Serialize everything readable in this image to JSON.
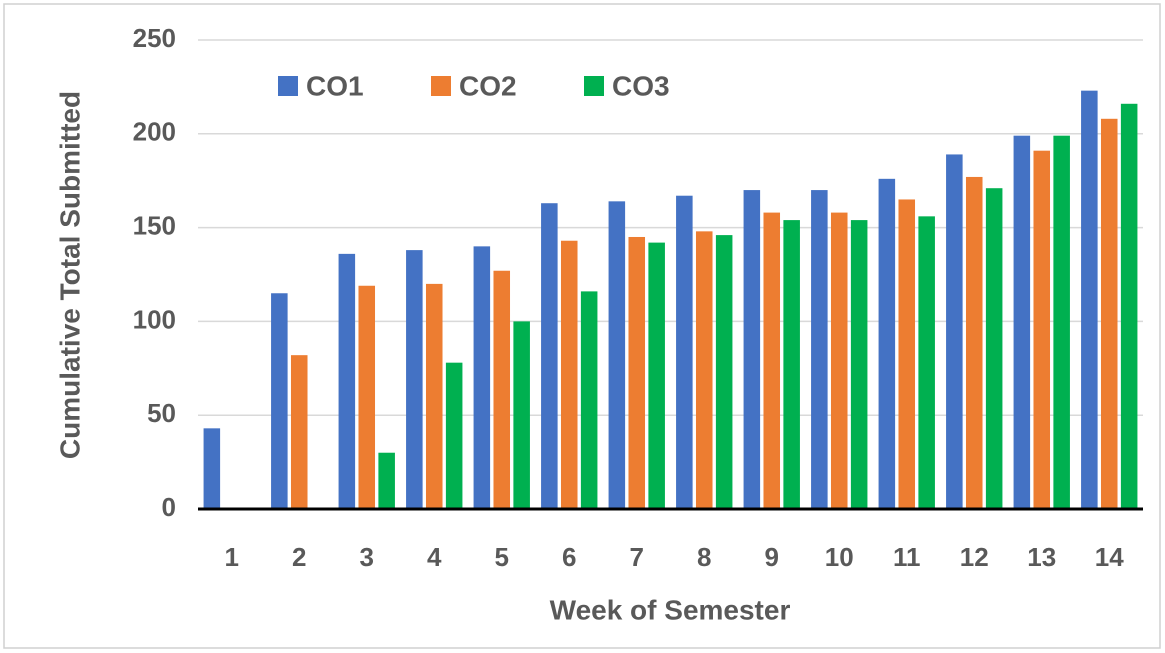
{
  "chart_data": {
    "type": "bar",
    "xlabel": "Week of Semester",
    "ylabel": "Cumulative Total Submitted",
    "categories": [
      "1",
      "2",
      "3",
      "4",
      "5",
      "6",
      "7",
      "8",
      "9",
      "10",
      "11",
      "12",
      "13",
      "14"
    ],
    "series": [
      {
        "name": "CO1",
        "color": "#4472c4",
        "values": [
          43,
          115,
          136,
          138,
          140,
          163,
          164,
          167,
          170,
          170,
          176,
          189,
          199,
          223
        ]
      },
      {
        "name": "CO2",
        "color": "#ed7d31",
        "values": [
          null,
          82,
          119,
          120,
          127,
          143,
          145,
          148,
          158,
          158,
          165,
          177,
          191,
          208
        ]
      },
      {
        "name": "CO3",
        "color": "#00b050",
        "values": [
          null,
          null,
          30,
          78,
          100,
          116,
          142,
          146,
          154,
          154,
          156,
          171,
          199,
          216
        ]
      }
    ],
    "ylim": [
      0,
      250
    ],
    "yticks": [
      0,
      50,
      100,
      150,
      200,
      250
    ],
    "grid": true,
    "legend": "top-left"
  }
}
